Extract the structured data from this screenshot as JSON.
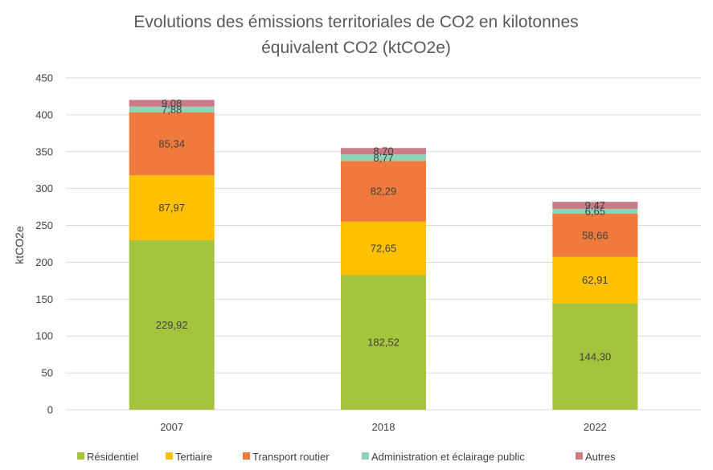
{
  "chart_data": {
    "type": "bar",
    "stacked": true,
    "title": "Evolutions des émissions territoriales de CO2 en kilotonnes équivalent CO2 (ktCO2e)",
    "title_lines": [
      "Evolutions des émissions territoriales de CO2 en kilotonnes",
      "équivalent CO2 (ktCO2e)"
    ],
    "ylabel": "ktCO2e",
    "xlabel": "",
    "ylim": [
      0,
      450
    ],
    "yticks": [
      0,
      50,
      100,
      150,
      200,
      250,
      300,
      350,
      400,
      450
    ],
    "grid": true,
    "legend_position": "bottom",
    "categories": [
      "2007",
      "2018",
      "2022"
    ],
    "series": [
      {
        "name": "Résidentiel",
        "color": "#a4c43d",
        "values": [
          229.92,
          182.52,
          144.3
        ],
        "labels": [
          "229,92",
          "182,52",
          "144,30"
        ]
      },
      {
        "name": "Tertiaire",
        "color": "#ffc000",
        "values": [
          87.97,
          72.65,
          62.91
        ],
        "labels": [
          "87,97",
          "72,65",
          "62,91"
        ]
      },
      {
        "name": "Transport routier",
        "color": "#ef7a3c",
        "values": [
          85.34,
          82.29,
          58.66
        ],
        "labels": [
          "85,34",
          "82,29",
          "58,66"
        ]
      },
      {
        "name": "Administration et éclairage public",
        "color": "#8fd3b6",
        "values": [
          7.88,
          8.77,
          6.65
        ],
        "labels": [
          "7,88",
          "8,77",
          "6,65"
        ]
      },
      {
        "name": "Autres",
        "color": "#cc7a86",
        "values": [
          9.08,
          8.7,
          9.47
        ],
        "labels": [
          "9,08",
          "8,70",
          "9,47"
        ]
      }
    ]
  }
}
